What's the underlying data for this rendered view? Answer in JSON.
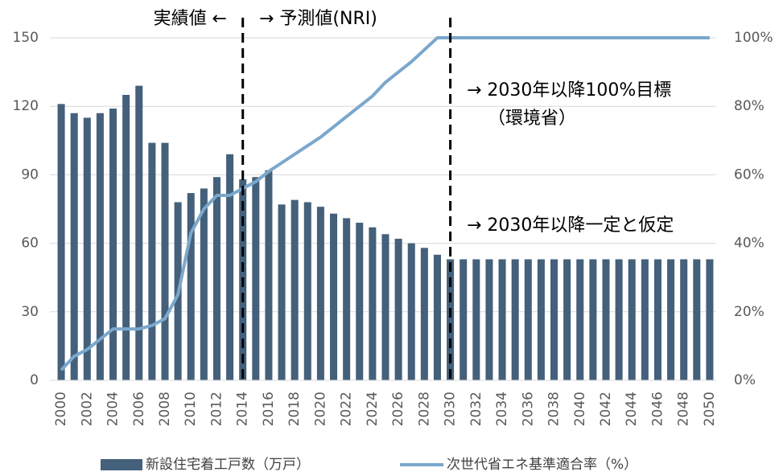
{
  "chart_data": {
    "type": "bar_line",
    "categories": [
      "2000",
      null,
      "2002",
      null,
      "2004",
      null,
      "2006",
      null,
      "2008",
      null,
      "2010",
      null,
      "2012",
      null,
      "2014",
      null,
      "2016",
      null,
      "2018",
      null,
      "2020",
      null,
      "2022",
      null,
      "2024",
      null,
      "2026",
      null,
      "2028",
      null,
      "2030",
      null,
      "2032",
      null,
      "2034",
      null,
      "2036",
      null,
      "2038",
      null,
      "2040",
      null,
      "2042",
      null,
      "2044",
      null,
      "2046",
      null,
      "2048",
      null,
      "2050"
    ],
    "series": [
      {
        "name": "新設住宅着工戸数（万戸）",
        "color": "#44607a",
        "kind": "bar",
        "values": [
          121,
          117,
          115,
          117,
          119,
          125,
          129,
          104,
          104,
          78,
          82,
          84,
          89,
          99,
          88,
          89,
          92,
          77,
          79,
          78,
          76,
          73,
          71,
          69,
          67,
          64,
          62,
          60,
          58,
          55,
          53,
          53,
          53,
          53,
          53,
          53,
          53,
          53,
          53,
          53,
          53,
          53,
          53,
          53,
          53,
          53,
          53,
          53,
          53,
          53,
          53
        ]
      },
      {
        "name": "次世代省エネ基準適合率（%）",
        "color": "#7ba7cc",
        "kind": "line",
        "axis": "y2",
        "values": [
          3,
          7,
          9,
          12,
          15,
          15,
          15,
          16,
          18,
          25,
          43,
          50,
          54,
          54,
          56,
          58,
          61,
          63.5,
          66,
          68.5,
          71,
          74,
          77,
          80,
          83,
          87,
          90,
          93,
          96.5,
          100,
          100,
          100,
          100,
          100,
          100,
          100,
          100,
          100,
          100,
          100,
          100,
          100,
          100,
          100,
          100,
          100,
          100,
          100,
          100,
          100,
          100
        ]
      }
    ],
    "ylim": [
      0,
      150
    ],
    "yticks": [
      0,
      30,
      60,
      90,
      120,
      150
    ],
    "y2lim": [
      0,
      100
    ],
    "y2ticks": [
      {
        "value": 0,
        "label": "0%"
      },
      {
        "value": 20,
        "label": "20%"
      },
      {
        "value": 40,
        "label": "40%"
      },
      {
        "value": 60,
        "label": "60%"
      },
      {
        "value": 80,
        "label": "80%"
      },
      {
        "value": 100,
        "label": "100%"
      }
    ],
    "grid": true,
    "reference_lines": [
      "2014",
      "2030"
    ],
    "annotations": [
      "実績値 ←",
      "→ 予測値(NRI)",
      "→ 2030年以降100%目標",
      "（環境省）",
      "→ 2030年以降一定と仮定"
    ],
    "legend": "bottom"
  }
}
